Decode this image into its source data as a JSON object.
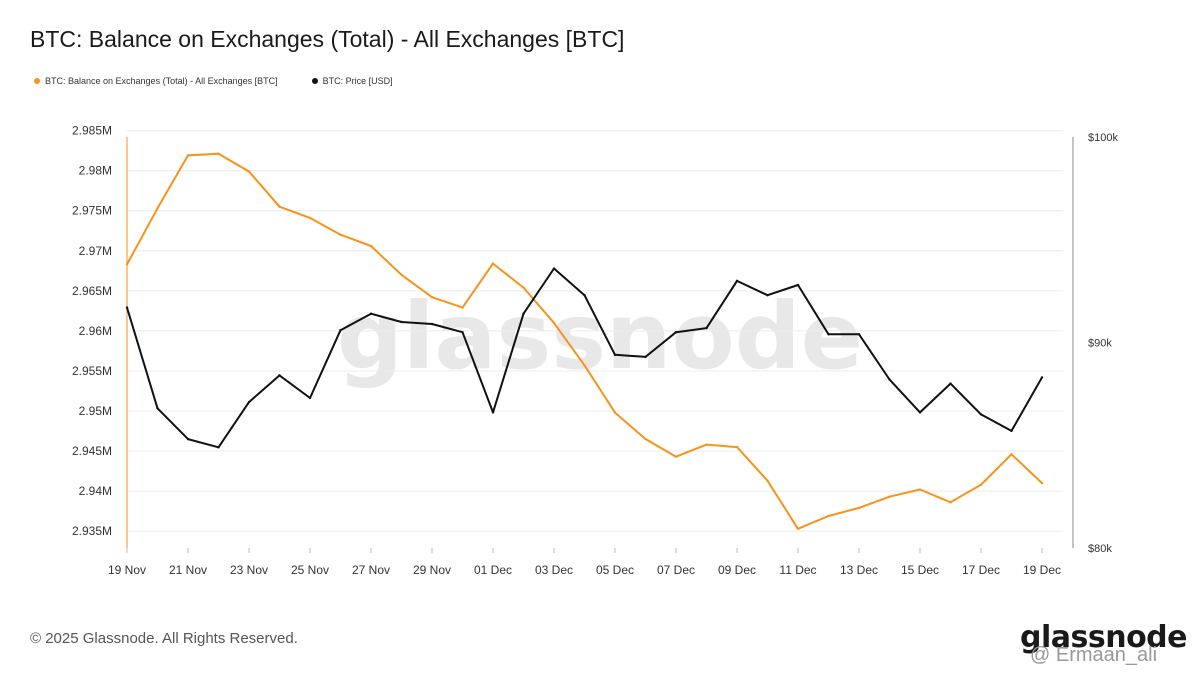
{
  "header": {
    "title": "BTC: Balance on Exchanges (Total) - All Exchanges [BTC]"
  },
  "legend": [
    {
      "label": "BTC: Balance on Exchanges (Total) - All Exchanges [BTC]",
      "color": "#f7931a"
    },
    {
      "label": "BTC: Price [USD]",
      "color": "#111111"
    }
  ],
  "watermark": "glassnode",
  "footer": {
    "copyright": "© 2025 Glassnode. All Rights Reserved.",
    "logo": "glassnode",
    "credit": "@ Ermaan_ali"
  },
  "chart_data": {
    "type": "line",
    "x": [
      "19 Nov",
      "20 Nov",
      "21 Nov",
      "22 Nov",
      "23 Nov",
      "24 Nov",
      "25 Nov",
      "26 Nov",
      "27 Nov",
      "28 Nov",
      "29 Nov",
      "30 Nov",
      "01 Dec",
      "02 Dec",
      "03 Dec",
      "04 Dec",
      "05 Dec",
      "06 Dec",
      "07 Dec",
      "08 Dec",
      "09 Dec",
      "10 Dec",
      "11 Dec",
      "12 Dec",
      "13 Dec",
      "14 Dec",
      "15 Dec",
      "16 Dec",
      "17 Dec",
      "18 Dec",
      "19 Dec"
    ],
    "x_tick_labels": [
      "19 Nov",
      "21 Nov",
      "23 Nov",
      "25 Nov",
      "27 Nov",
      "29 Nov",
      "01 Dec",
      "03 Dec",
      "05 Dec",
      "07 Dec",
      "09 Dec",
      "11 Dec",
      "13 Dec",
      "15 Dec",
      "17 Dec",
      "19 Dec"
    ],
    "series": [
      {
        "name": "BTC: Balance on Exchanges (Total) - All Exchanges [BTC]",
        "axis": "left",
        "color": "#f7931a",
        "values": [
          2968300,
          2975300,
          2981900,
          2982100,
          2979900,
          2975500,
          2974100,
          2972000,
          2970600,
          2967000,
          2964200,
          2962900,
          2968400,
          2965400,
          2961000,
          2955700,
          2949800,
          2946500,
          2944300,
          2945800,
          2945500,
          2941300,
          2935300,
          2936900,
          2937900,
          2939300,
          2940200,
          2938600,
          2940800,
          2944600,
          2941000
        ]
      },
      {
        "name": "BTC: Price [USD]",
        "axis": "right",
        "color": "#111111",
        "values": [
          91700,
          86800,
          85300,
          84900,
          87100,
          88400,
          87300,
          90600,
          91400,
          91000,
          90900,
          90500,
          86600,
          91400,
          93600,
          92300,
          89400,
          89300,
          90500,
          90700,
          93000,
          92300,
          92800,
          90400,
          90400,
          88200,
          86600,
          88000,
          86500,
          85700,
          88300
        ]
      }
    ],
    "left_axis": {
      "ylim": [
        2933000,
        2985000
      ],
      "ticks": [
        "2.935M",
        "2.94M",
        "2.945M",
        "2.95M",
        "2.955M",
        "2.96M",
        "2.965M",
        "2.97M",
        "2.975M",
        "2.98M",
        "2.985M"
      ],
      "tick_values": [
        2935000,
        2940000,
        2945000,
        2950000,
        2955000,
        2960000,
        2965000,
        2970000,
        2975000,
        2980000,
        2985000
      ]
    },
    "right_axis": {
      "ylim": [
        80000,
        100000
      ],
      "ticks": [
        "$80k",
        "$90k",
        "$100k"
      ],
      "tick_values": [
        80000,
        90000,
        100000
      ],
      "scale": "linear"
    },
    "grid": true,
    "legend_position": "top-left"
  }
}
